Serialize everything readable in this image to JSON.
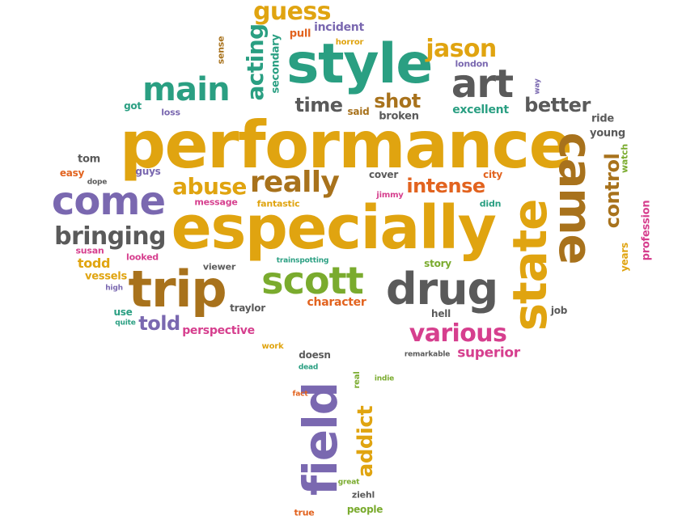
{
  "palette": {
    "gold": "#e0a410",
    "purple": "#7a68b0",
    "teal": "#2a9f82",
    "gray": "#5a5a5a",
    "brown": "#a8721c",
    "green": "#7aab2e",
    "pink": "#d63f8e",
    "orange": "#e2631f"
  },
  "words": [
    {
      "text": "performance",
      "color": "gold"
    },
    {
      "text": "especially",
      "color": "gold"
    },
    {
      "text": "style",
      "color": "teal"
    },
    {
      "text": "come",
      "color": "purple"
    },
    {
      "text": "state",
      "color": "gold"
    },
    {
      "text": "came",
      "color": "brown"
    },
    {
      "text": "field",
      "color": "purple"
    },
    {
      "text": "trip",
      "color": "brown"
    },
    {
      "text": "drug",
      "color": "gray"
    },
    {
      "text": "scott",
      "color": "green"
    },
    {
      "text": "main",
      "color": "teal"
    },
    {
      "text": "art",
      "color": "gray"
    },
    {
      "text": "really",
      "color": "brown"
    },
    {
      "text": "bringing",
      "color": "gray"
    },
    {
      "text": "various",
      "color": "pink"
    },
    {
      "text": "abuse",
      "color": "gold"
    },
    {
      "text": "jason",
      "color": "gold"
    },
    {
      "text": "guess",
      "color": "gold"
    },
    {
      "text": "acting",
      "color": "teal"
    },
    {
      "text": "addict",
      "color": "gold"
    },
    {
      "text": "control",
      "color": "brown"
    },
    {
      "text": "intense",
      "color": "orange"
    },
    {
      "text": "better",
      "color": "gray"
    },
    {
      "text": "shot",
      "color": "brown"
    },
    {
      "text": "time",
      "color": "gray"
    },
    {
      "text": "told",
      "color": "purple"
    },
    {
      "text": "superior",
      "color": "pink"
    },
    {
      "text": "perspective",
      "color": "pink"
    },
    {
      "text": "todd",
      "color": "gold"
    },
    {
      "text": "character",
      "color": "orange"
    },
    {
      "text": "excellent",
      "color": "teal"
    },
    {
      "text": "profession",
      "color": "pink"
    },
    {
      "text": "secondary",
      "color": "teal"
    },
    {
      "text": "incident",
      "color": "purple"
    },
    {
      "text": "pull",
      "color": "orange"
    },
    {
      "text": "horror",
      "color": "gold"
    },
    {
      "text": "london",
      "color": "purple"
    },
    {
      "text": "broken",
      "color": "gray"
    },
    {
      "text": "said",
      "color": "brown"
    },
    {
      "text": "got",
      "color": "teal"
    },
    {
      "text": "loss",
      "color": "purple"
    },
    {
      "text": "sense",
      "color": "brown"
    },
    {
      "text": "way",
      "color": "purple"
    },
    {
      "text": "young",
      "color": "gray"
    },
    {
      "text": "ride",
      "color": "gray"
    },
    {
      "text": "watch",
      "color": "green"
    },
    {
      "text": "years",
      "color": "gold"
    },
    {
      "text": "tom",
      "color": "gray"
    },
    {
      "text": "easy",
      "color": "orange"
    },
    {
      "text": "dope",
      "color": "gray"
    },
    {
      "text": "guys",
      "color": "purple"
    },
    {
      "text": "message",
      "color": "pink"
    },
    {
      "text": "fantastic",
      "color": "gold"
    },
    {
      "text": "cover",
      "color": "gray"
    },
    {
      "text": "city",
      "color": "orange"
    },
    {
      "text": "jimmy",
      "color": "pink"
    },
    {
      "text": "didn",
      "color": "teal"
    },
    {
      "text": "susan",
      "color": "pink"
    },
    {
      "text": "looked",
      "color": "pink"
    },
    {
      "text": "viewer",
      "color": "gray"
    },
    {
      "text": "trainspotting",
      "color": "teal"
    },
    {
      "text": "story",
      "color": "green"
    },
    {
      "text": "vessels",
      "color": "gold"
    },
    {
      "text": "high",
      "color": "purple"
    },
    {
      "text": "use",
      "color": "teal"
    },
    {
      "text": "quite",
      "color": "teal"
    },
    {
      "text": "traylor",
      "color": "gray"
    },
    {
      "text": "hell",
      "color": "gray"
    },
    {
      "text": "job",
      "color": "gray"
    },
    {
      "text": "work",
      "color": "gold"
    },
    {
      "text": "doesn",
      "color": "gray"
    },
    {
      "text": "remarkable",
      "color": "gray"
    },
    {
      "text": "dead",
      "color": "teal"
    },
    {
      "text": "fact",
      "color": "orange"
    },
    {
      "text": "real",
      "color": "green"
    },
    {
      "text": "indie",
      "color": "green"
    },
    {
      "text": "great",
      "color": "green"
    },
    {
      "text": "ziehl",
      "color": "gray"
    },
    {
      "text": "true",
      "color": "orange"
    },
    {
      "text": "people",
      "color": "green"
    }
  ]
}
